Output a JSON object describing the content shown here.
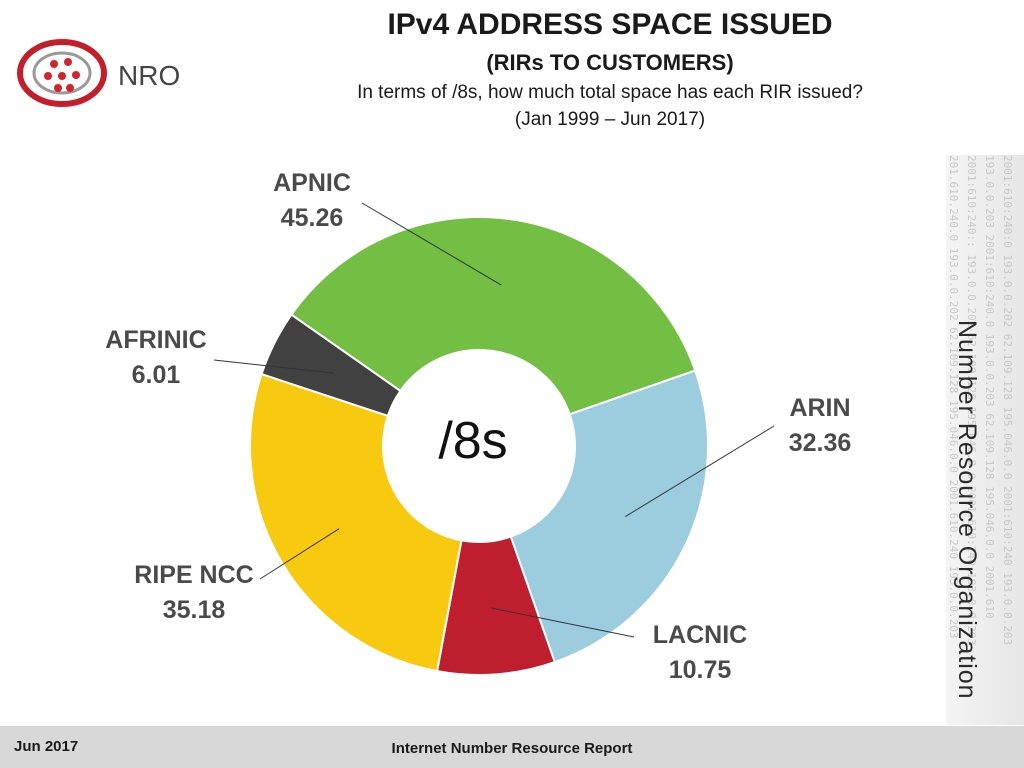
{
  "logo": {
    "text": "NRO"
  },
  "header": {
    "title": "IPv4 ADDRESS SPACE ISSUED",
    "subtitle": "(RIRs TO CUSTOMERS)",
    "question": "In terms of /8s, how much total space has each RIR issued?",
    "period": "(Jan 1999 –  Jun 2017)"
  },
  "side": {
    "organization": "Number Resource Organization",
    "background_text": [
      "201.610.240.0  193.0.0.202  62.109.128  195.046.0.0 2001.610.240 193.0.0.203",
      "2001:610:240::  193.0.0.202  62.109.128  195.046.0.0 2001:610:240 193.0.0.203",
      "193.0.0.203  2001:610:240.0  193.0.0.203  62.109.128  195.046.0.0  2001.610",
      "2001:610:240:0  193.0.0.202  62.109.128  195.046.0.0  2001:610:240 193.0.0.203"
    ]
  },
  "footer": {
    "date": "Jun 2017",
    "report": "Internet Number Resource Report"
  },
  "colors": {
    "APNIC": "#72bf44",
    "ARIN": "#9ccddf",
    "LACNIC": "#be1e2d",
    "RIPE NCC": "#f7c90f",
    "AFRINIC": "#414141"
  },
  "chart_data": {
    "type": "pie",
    "style": "donut",
    "center_label": "/8s",
    "categories": [
      "APNIC",
      "ARIN",
      "LACNIC",
      "RIPE NCC",
      "AFRINIC"
    ],
    "values": [
      45.26,
      32.36,
      10.75,
      35.18,
      6.01
    ],
    "value_labels": [
      "45.26",
      "32.36",
      "10.75",
      "35.18",
      "6.01"
    ],
    "legend": "none"
  }
}
